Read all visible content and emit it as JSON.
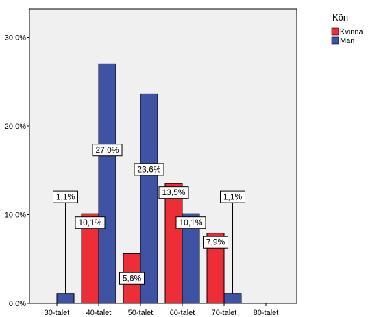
{
  "chart_data": {
    "type": "bar",
    "categories": [
      "30-talet",
      "40-talet",
      "50-talet",
      "60-talet",
      "70-talet",
      "80-talet"
    ],
    "series": [
      {
        "name": "Kvinna",
        "color": "#ee2e36",
        "values": [
          0,
          10.1,
          5.6,
          13.5,
          7.9,
          0
        ],
        "labels": [
          "",
          "10,1%",
          "5,6%",
          "13,5%",
          "7,9%",
          ""
        ]
      },
      {
        "name": "Man",
        "color": "#3e53a4",
        "values": [
          1.1,
          27.0,
          23.6,
          10.1,
          1.1,
          0
        ],
        "labels": [
          "1,1%",
          "27,0%",
          "23,6%",
          "10,1%",
          "1,1%",
          ""
        ]
      }
    ],
    "yticks": [
      "0,0%",
      "10,0%",
      "20,0%",
      "30,0%"
    ],
    "ytick_values": [
      0,
      10,
      20,
      30
    ],
    "ylim": [
      0,
      33.1
    ],
    "legend_title": "Kön",
    "legend_position": "top-right",
    "plot_background": "#f0f0f0",
    "grid": false
  }
}
